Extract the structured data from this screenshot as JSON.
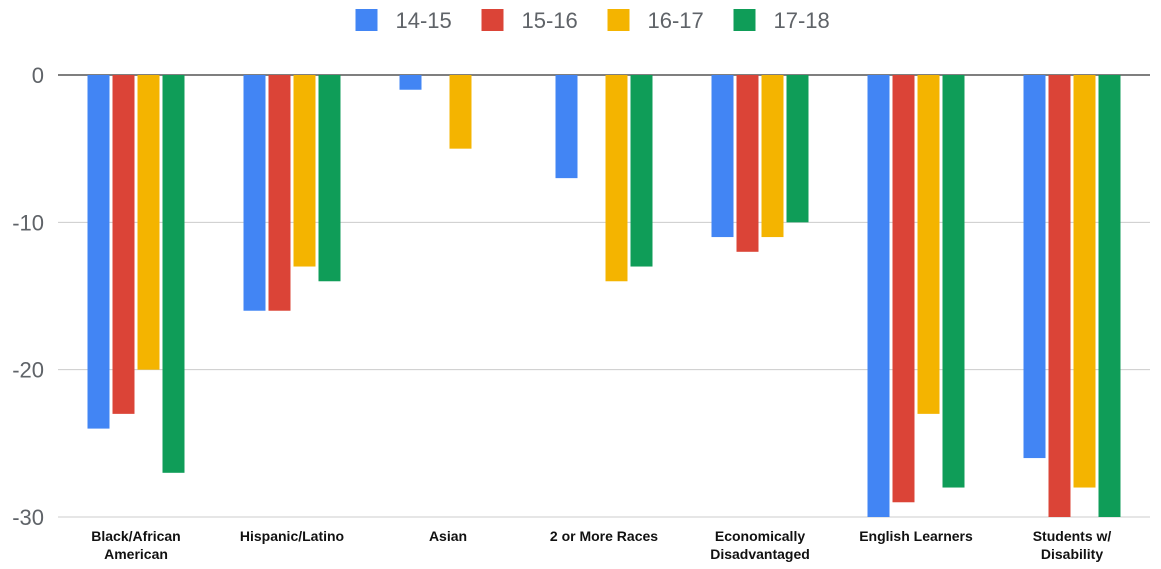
{
  "chart_data": {
    "type": "bar",
    "categories": [
      [
        "Black/African",
        "American"
      ],
      [
        "Hispanic/Latino"
      ],
      [
        "Asian"
      ],
      [
        "2 or More Races"
      ],
      [
        "Economically",
        "Disadvantaged"
      ],
      [
        "English Learners"
      ],
      [
        "Students w/",
        "Disability"
      ]
    ],
    "series": [
      {
        "name": "14-15",
        "color": "#4285f4",
        "values": [
          -24,
          -16,
          -1,
          -7,
          -11,
          -30,
          -26
        ]
      },
      {
        "name": "15-16",
        "color": "#db4437",
        "values": [
          -23,
          -16,
          0,
          0,
          -12,
          -29,
          -30
        ]
      },
      {
        "name": "16-17",
        "color": "#f4b400",
        "values": [
          -20,
          -13,
          -5,
          -14,
          -11,
          -23,
          -28
        ]
      },
      {
        "name": "17-18",
        "color": "#0f9d58",
        "values": [
          -27,
          -14,
          0,
          -13,
          -10,
          -28,
          -30
        ]
      }
    ],
    "yticks": [
      0,
      -10,
      -20,
      -30
    ],
    "ylim": [
      -30,
      0
    ],
    "grid": true,
    "legend": "top-center"
  }
}
